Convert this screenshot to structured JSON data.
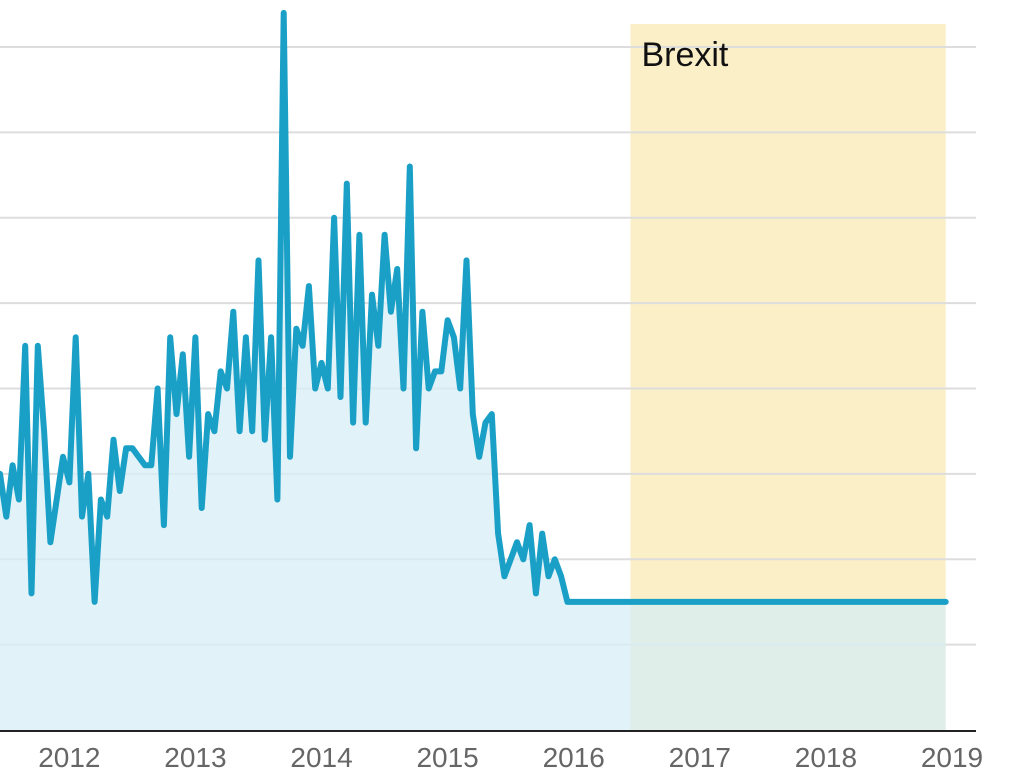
{
  "chart_data": {
    "type": "area",
    "title": "",
    "xlabel": "",
    "ylabel": "",
    "x_ticks": [
      2012,
      2013,
      2014,
      2015,
      2016,
      2017,
      2018,
      2019
    ],
    "xlim": [
      2011.45,
      2019.0
    ],
    "ylim": [
      0,
      8
    ],
    "y_gridlines": [
      1,
      2,
      3,
      4,
      5,
      6,
      7,
      8
    ],
    "grid": true,
    "annotations": [
      {
        "label": "Brexit",
        "x_start": 2016.45,
        "x_end": 2018.95,
        "color": "#fbefc7"
      }
    ],
    "colors": {
      "line": "#1aa0c6",
      "fill": "#d7eef5",
      "shade": "#fbefc7",
      "grid": "#dddddd",
      "axis": "#222222"
    },
    "series": [
      {
        "x": [
          2011.45,
          2011.5,
          2011.55,
          2011.6,
          2011.65,
          2011.7,
          2011.75,
          2011.8,
          2011.85,
          2011.9,
          2011.95,
          2012.0,
          2012.05,
          2012.1,
          2012.15,
          2012.2,
          2012.25,
          2012.3,
          2012.35,
          2012.4,
          2012.45,
          2012.5,
          2012.55,
          2012.6,
          2012.65,
          2012.7,
          2012.75,
          2012.8,
          2012.85,
          2012.9,
          2012.95,
          2013.0,
          2013.05,
          2013.1,
          2013.15,
          2013.2,
          2013.25,
          2013.3,
          2013.35,
          2013.4,
          2013.45,
          2013.5,
          2013.55,
          2013.6,
          2013.65,
          2013.7,
          2013.75,
          2013.8,
          2013.85,
          2013.9,
          2013.95,
          2014.0,
          2014.05,
          2014.1,
          2014.15,
          2014.2,
          2014.25,
          2014.3,
          2014.35,
          2014.4,
          2014.45,
          2014.5,
          2014.55,
          2014.6,
          2014.65,
          2014.7,
          2014.75,
          2014.8,
          2014.85,
          2014.9,
          2014.95,
          2015.0,
          2015.05,
          2015.1,
          2015.15,
          2015.2,
          2015.25,
          2015.3,
          2015.35,
          2015.4,
          2015.45,
          2015.5,
          2015.55,
          2015.6,
          2015.65,
          2015.7,
          2015.75,
          2015.8,
          2015.85,
          2015.9,
          2015.95,
          2016.0,
          2016.05,
          2016.1,
          2016.15,
          2016.2,
          2016.25,
          2016.3,
          2016.35,
          2016.4,
          2016.45,
          2016.5,
          2016.55,
          2016.6,
          2016.65,
          2016.7,
          2016.75,
          2016.8,
          2016.85,
          2016.9,
          2016.95,
          2017.0,
          2017.05,
          2017.1,
          2017.15,
          2017.2,
          2017.25,
          2017.3,
          2017.35,
          2017.4,
          2017.45,
          2017.5,
          2017.55,
          2017.6,
          2017.65,
          2017.7,
          2017.75,
          2017.8,
          2017.85,
          2017.9,
          2017.95,
          2018.0,
          2018.05,
          2018.1,
          2018.15,
          2018.2,
          2018.25,
          2018.3,
          2018.35,
          2018.4,
          2018.45,
          2018.5,
          2018.55,
          2018.6,
          2018.65,
          2018.7,
          2018.75,
          2018.8,
          2018.85,
          2018.9,
          2018.95
        ],
        "values": [
          3.0,
          2.5,
          3.1,
          2.7,
          4.5,
          1.6,
          4.5,
          3.5,
          2.2,
          2.7,
          3.2,
          2.9,
          4.6,
          2.5,
          3.0,
          1.5,
          2.7,
          2.5,
          3.4,
          2.8,
          3.3,
          3.3,
          3.2,
          3.1,
          3.1,
          4.0,
          2.4,
          4.6,
          3.7,
          4.4,
          3.2,
          4.6,
          2.6,
          3.7,
          3.5,
          4.2,
          4.0,
          4.9,
          3.5,
          4.6,
          3.5,
          5.5,
          3.4,
          4.6,
          2.7,
          8.4,
          3.2,
          4.7,
          4.5,
          5.2,
          4.0,
          4.3,
          4.0,
          6.0,
          3.9,
          6.4,
          3.6,
          5.8,
          3.6,
          5.1,
          4.5,
          5.8,
          4.9,
          5.4,
          4.0,
          6.6,
          3.3,
          4.9,
          4.0,
          4.2,
          4.2,
          4.8,
          4.6,
          4.0,
          5.5,
          3.7,
          3.2,
          3.6,
          3.7,
          2.3,
          1.8,
          2.0,
          2.2,
          2.0,
          2.4,
          1.6,
          2.3,
          1.8,
          2.0,
          1.8,
          1.5,
          1.5,
          1.5,
          1.5,
          1.5,
          1.5,
          1.5,
          1.5,
          1.5,
          1.5,
          1.5,
          1.5,
          1.5,
          1.5,
          1.5,
          1.5,
          1.5,
          1.5,
          1.5,
          1.5,
          1.5,
          1.5,
          1.5,
          1.5,
          1.5,
          1.5,
          1.5,
          1.5,
          1.5,
          1.5,
          1.5,
          1.5,
          1.5,
          1.5,
          1.5,
          1.5,
          1.5,
          1.5,
          1.5,
          1.5,
          1.5,
          1.5,
          1.5,
          1.5,
          1.5,
          1.5,
          1.5,
          1.5,
          1.5,
          1.5,
          1.5,
          1.5,
          1.5,
          1.5,
          1.5,
          1.5,
          1.5,
          1.5,
          1.5,
          1.5,
          1.5
        ]
      }
    ]
  }
}
